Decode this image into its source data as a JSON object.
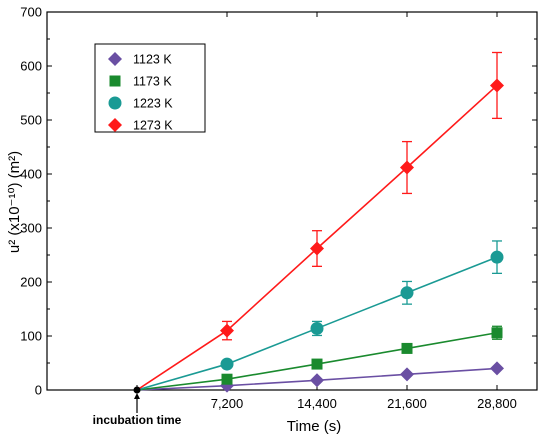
{
  "chart_data": {
    "type": "line",
    "title": "",
    "xlabel": "Time (s)",
    "ylabel": "u² (x10⁻¹⁰) (m²)",
    "xlim": [
      -7200,
      32000
    ],
    "ylim": [
      0,
      700
    ],
    "x_ticks": [
      7200,
      14400,
      21600,
      28800
    ],
    "x_tick_labels": [
      "7,200",
      "14,400",
      "21,600",
      "28,800"
    ],
    "y_ticks": [
      0,
      100,
      200,
      300,
      400,
      500,
      600,
      700
    ],
    "y_tick_labels": [
      "0",
      "100",
      "200",
      "300",
      "400",
      "500",
      "600",
      "700"
    ],
    "grid": false,
    "legend_position": "top-left",
    "origin_point": {
      "x": 0,
      "y": 0
    },
    "annotation": {
      "text": "incubation time",
      "x": 0
    },
    "series": [
      {
        "name": "1123 K",
        "marker": "diamond",
        "color": "#6a4fa3",
        "x": [
          7200,
          14400,
          21600,
          28800
        ],
        "y": [
          8,
          18,
          29,
          40
        ],
        "err": [
          0,
          0,
          0,
          0
        ]
      },
      {
        "name": "1173 K",
        "marker": "square",
        "color": "#1a8a2e",
        "x": [
          7200,
          14400,
          21600,
          28800
        ],
        "y": [
          20,
          48,
          77,
          106
        ],
        "err": [
          0,
          0,
          0,
          12
        ]
      },
      {
        "name": "1223 K",
        "marker": "circle",
        "color": "#1a9a94",
        "x": [
          7200,
          14400,
          21600,
          28800
        ],
        "y": [
          48,
          114,
          180,
          246
        ],
        "err": [
          0,
          13,
          21,
          30
        ]
      },
      {
        "name": "1273 K",
        "marker": "diamond",
        "color": "#ff1a1a",
        "x": [
          7200,
          14400,
          21600,
          28800
        ],
        "y": [
          110,
          262,
          412,
          564
        ],
        "err": [
          17,
          33,
          48,
          61
        ]
      }
    ]
  }
}
